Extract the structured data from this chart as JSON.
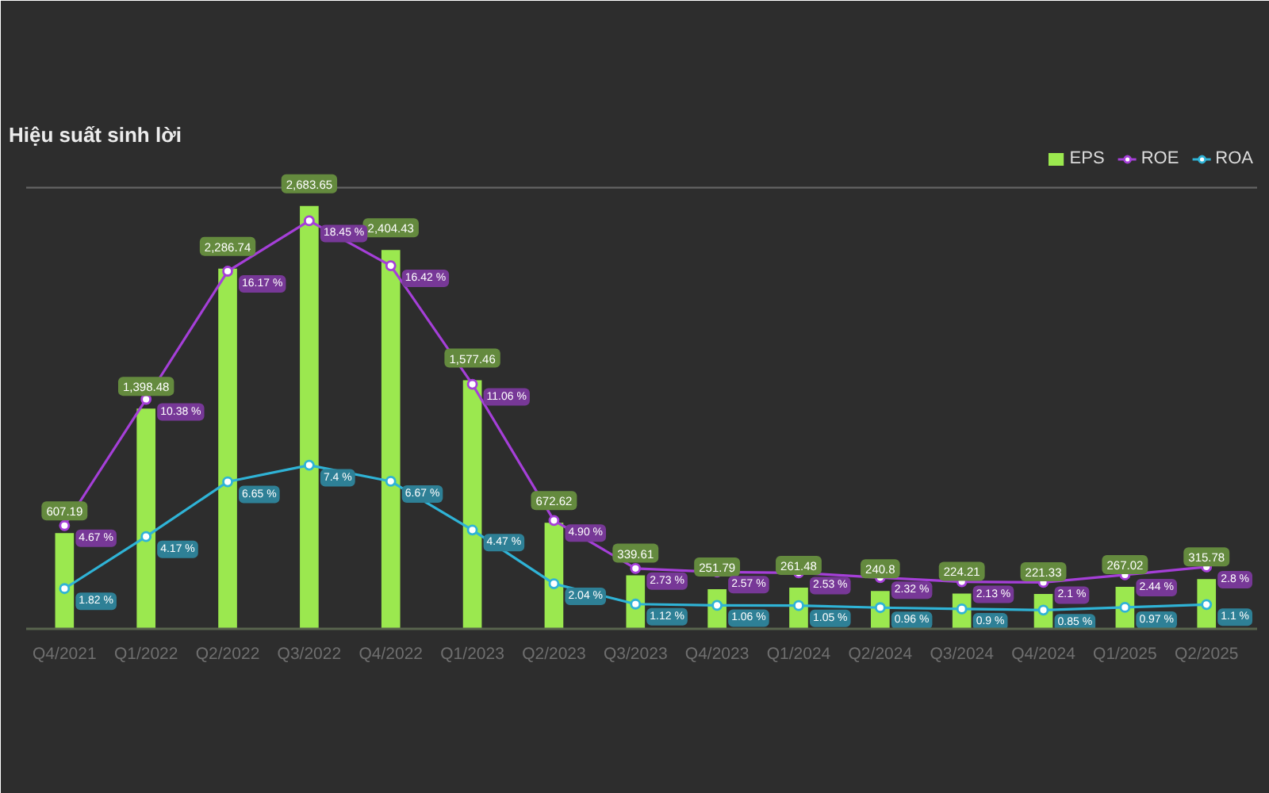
{
  "chart_data": {
    "type": "bar",
    "title": "Hiệu suất sinh lời",
    "categories": [
      "Q4/2021",
      "Q1/2022",
      "Q2/2022",
      "Q3/2022",
      "Q4/2022",
      "Q1/2023",
      "Q2/2023",
      "Q3/2023",
      "Q4/2023",
      "Q1/2024",
      "Q2/2024",
      "Q3/2024",
      "Q4/2024",
      "Q1/2025",
      "Q2/2025"
    ],
    "series": [
      {
        "name": "EPS",
        "color": "#9be84f",
        "values": [
          607.19,
          1398.48,
          2286.74,
          2683.65,
          2404.43,
          1577.46,
          672.62,
          339.61,
          251.79,
          261.48,
          240.8,
          224.21,
          221.33,
          267.02,
          315.78
        ],
        "value_labels": [
          "607.19",
          "1,398.48",
          "2,286.74",
          "2,683.65",
          "2,404.43",
          "1,577.46",
          "672.62",
          "339.61",
          "251.79",
          "261.48",
          "240.8",
          "224.21",
          "221.33",
          "267.02",
          "315.78"
        ]
      },
      {
        "name": "ROE",
        "type": "line",
        "axis": "y2",
        "color": "#a53fd8",
        "values": [
          4.67,
          10.38,
          16.17,
          18.45,
          16.42,
          11.06,
          4.9,
          2.73,
          2.57,
          2.53,
          2.32,
          2.13,
          2.1,
          2.44,
          2.8
        ],
        "value_labels": [
          "4.67 %",
          "10.38 %",
          "16.17 %",
          "18.45 %",
          "16.42 %",
          "11.06 %",
          "4.90 %",
          "2.73 %",
          "2.57 %",
          "2.53 %",
          "2.32 %",
          "2.13 %",
          "2.1 %",
          "2.44 %",
          "2.8 %"
        ]
      },
      {
        "name": "ROA",
        "type": "line",
        "axis": "y2",
        "color": "#2fb3d6",
        "values": [
          1.82,
          4.17,
          6.65,
          7.4,
          6.67,
          4.47,
          2.04,
          1.12,
          1.06,
          1.05,
          0.96,
          0.9,
          0.85,
          0.97,
          1.1
        ],
        "value_labels": [
          "1.82 %",
          "4.17 %",
          "6.65 %",
          "7.4 %",
          "6.67 %",
          "4.47 %",
          "2.04 %",
          "1.12 %",
          "1.06 %",
          "1.05 %",
          "0.96 %",
          "0.9 %",
          "0.85 %",
          "0.97 %",
          "1.1 %"
        ]
      }
    ],
    "ylim": [
      0,
      3060
    ],
    "y2lim": [
      0,
      21.8
    ],
    "ref_lines": [
      {
        "axis": "y",
        "value": 2800,
        "color": "#646464"
      }
    ],
    "tick_labels": "x",
    "legend": "top right",
    "marker": "circle"
  }
}
